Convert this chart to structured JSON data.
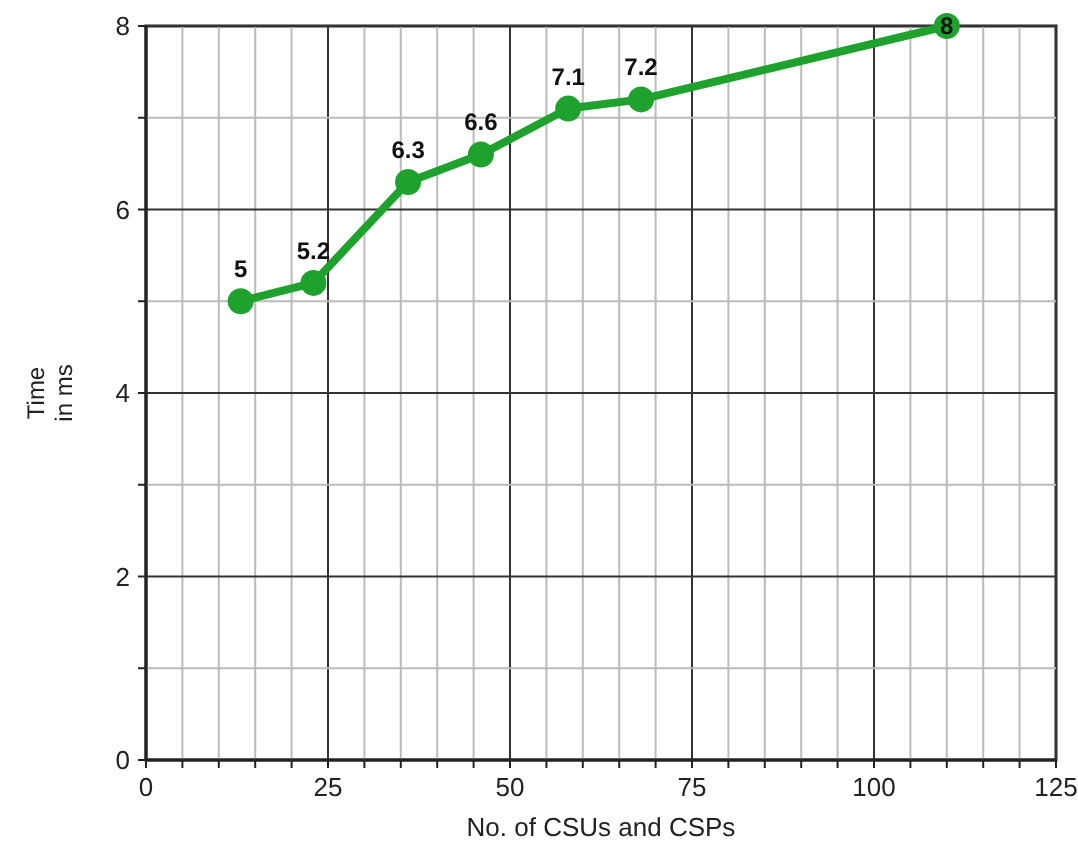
{
  "chart_data": {
    "type": "line",
    "xlabel": "No. of CSUs and CSPs",
    "ylabel": "Time in ms",
    "x": [
      13,
      23,
      36,
      46,
      58,
      68,
      110
    ],
    "series": [
      {
        "color": "#1ea22d",
        "values": [
          5,
          5.2,
          6.3,
          6.6,
          7.1,
          7.2,
          8
        ]
      }
    ],
    "xlim": [
      0,
      125
    ],
    "ylim": [
      0,
      8
    ],
    "xticks": [
      0,
      {
        "value": 5,
        "label": null
      },
      {
        "value": 10,
        "label": null
      },
      {
        "value": 15,
        "label": null
      },
      {
        "value": 20,
        "label": null
      },
      25,
      {
        "value": 30,
        "label": null
      },
      {
        "value": 35,
        "label": null
      },
      {
        "value": 40,
        "label": null
      },
      {
        "value": 45,
        "label": null
      },
      50,
      {
        "value": 55,
        "label": null
      },
      {
        "value": 60,
        "label": null
      },
      {
        "value": 65,
        "label": null
      },
      {
        "value": 70,
        "label": null
      },
      75,
      {
        "value": 80,
        "label": null
      },
      {
        "value": 85,
        "label": null
      },
      {
        "value": 90,
        "label": null
      },
      {
        "value": 95,
        "label": null
      },
      100,
      {
        "value": 105,
        "label": null
      },
      {
        "value": 110,
        "label": null
      },
      {
        "value": 115,
        "label": null
      },
      {
        "value": 120,
        "label": null
      },
      125
    ],
    "yticks": [
      0,
      {
        "value": 1,
        "label": null
      },
      2,
      {
        "value": 3,
        "label": null
      },
      4,
      {
        "value": 5,
        "label": null
      },
      6,
      {
        "value": 7,
        "label": null
      },
      8
    ],
    "grid": true,
    "marker": "circle",
    "line_style": "solid",
    "data_labels": true
  }
}
